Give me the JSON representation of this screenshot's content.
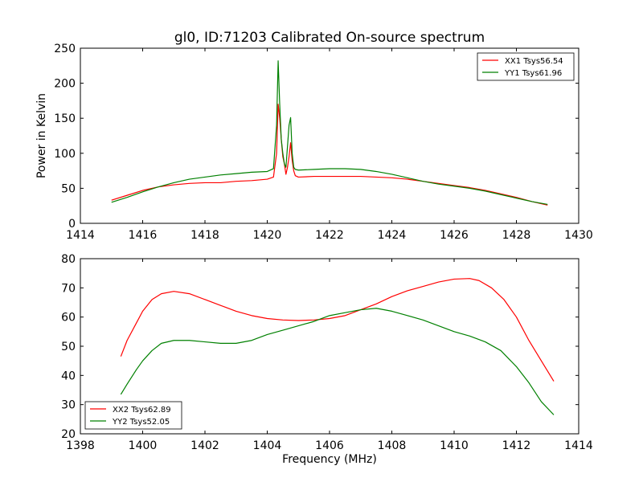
{
  "chart_data": [
    {
      "type": "line",
      "title": "gl0, ID:71203 Calibrated On-source spectrum",
      "xlabel": "",
      "ylabel": "Power in Kelvin",
      "xlim": [
        1414,
        1430
      ],
      "ylim": [
        0,
        250
      ],
      "xticks": [
        1414,
        1416,
        1418,
        1420,
        1422,
        1424,
        1426,
        1428,
        1430
      ],
      "yticks": [
        0,
        50,
        100,
        150,
        200,
        250
      ],
      "grid": false,
      "legend": "top-right",
      "series": [
        {
          "name": "XX1 Tsys56.54",
          "color": "#ff0000",
          "x": [
            1415.0,
            1415.5,
            1416.0,
            1416.5,
            1417.0,
            1417.5,
            1418.0,
            1418.5,
            1419.0,
            1419.5,
            1420.0,
            1420.2,
            1420.3,
            1420.35,
            1420.4,
            1420.45,
            1420.5,
            1420.55,
            1420.6,
            1420.65,
            1420.7,
            1420.75,
            1420.8,
            1420.85,
            1420.9,
            1421.0,
            1421.5,
            1422.0,
            1422.5,
            1423.0,
            1423.5,
            1424.0,
            1424.5,
            1425.0,
            1425.5,
            1426.0,
            1426.5,
            1427.0,
            1427.5,
            1428.0,
            1428.5,
            1429.0
          ],
          "y": [
            33,
            40,
            47,
            52,
            55,
            57,
            58,
            58,
            60,
            61,
            63,
            66,
            100,
            170,
            150,
            120,
            95,
            85,
            70,
            80,
            95,
            115,
            90,
            75,
            68,
            66,
            67,
            67,
            67,
            67,
            66,
            65,
            63,
            60,
            57,
            54,
            51,
            47,
            42,
            37,
            31,
            26
          ]
        },
        {
          "name": "YY1 Tsys61.96",
          "color": "#008000",
          "x": [
            1415.0,
            1415.5,
            1416.0,
            1416.5,
            1417.0,
            1417.5,
            1418.0,
            1418.5,
            1419.0,
            1419.5,
            1420.0,
            1420.2,
            1420.3,
            1420.35,
            1420.4,
            1420.45,
            1420.5,
            1420.55,
            1420.6,
            1420.65,
            1420.7,
            1420.75,
            1420.8,
            1420.85,
            1420.9,
            1421.0,
            1421.5,
            1422.0,
            1422.5,
            1423.0,
            1423.5,
            1424.0,
            1424.5,
            1425.0,
            1425.5,
            1426.0,
            1426.5,
            1427.0,
            1427.5,
            1428.0,
            1428.5,
            1429.0
          ],
          "y": [
            30,
            37,
            45,
            52,
            58,
            63,
            66,
            69,
            71,
            73,
            74,
            78,
            140,
            232,
            170,
            120,
            100,
            85,
            80,
            110,
            140,
            151,
            100,
            80,
            77,
            76,
            77,
            78,
            78,
            77,
            74,
            70,
            65,
            60,
            56,
            53,
            50,
            46,
            41,
            36,
            31,
            27
          ]
        }
      ]
    },
    {
      "type": "line",
      "title": "",
      "xlabel": "Frequency (MHz)",
      "ylabel": "",
      "xlim": [
        1398,
        1414
      ],
      "ylim": [
        20,
        80
      ],
      "xticks": [
        1398,
        1400,
        1402,
        1404,
        1406,
        1408,
        1410,
        1412,
        1414
      ],
      "yticks": [
        20,
        30,
        40,
        50,
        60,
        70,
        80
      ],
      "grid": false,
      "legend": "bottom-left",
      "series": [
        {
          "name": "XX2 Tsys62.89",
          "color": "#ff0000",
          "x": [
            1399.3,
            1399.5,
            1399.8,
            1400.0,
            1400.3,
            1400.6,
            1401.0,
            1401.5,
            1402.0,
            1402.5,
            1403.0,
            1403.5,
            1404.0,
            1404.5,
            1405.0,
            1405.5,
            1406.0,
            1406.5,
            1407.0,
            1407.5,
            1408.0,
            1408.5,
            1409.0,
            1409.5,
            1410.0,
            1410.5,
            1410.8,
            1411.2,
            1411.6,
            1412.0,
            1412.4,
            1412.8,
            1413.2
          ],
          "y": [
            46.5,
            52,
            58,
            62,
            66,
            68,
            68.8,
            68,
            66,
            64,
            62,
            60.5,
            59.5,
            59,
            58.8,
            59,
            59.5,
            60.5,
            62.5,
            64.5,
            67,
            69,
            70.5,
            72,
            73,
            73.2,
            72.5,
            70,
            66,
            60,
            52,
            45,
            38
          ]
        },
        {
          "name": "YY2 Tsys52.05",
          "color": "#008000",
          "x": [
            1399.3,
            1399.5,
            1399.8,
            1400.0,
            1400.3,
            1400.6,
            1401.0,
            1401.5,
            1402.0,
            1402.5,
            1403.0,
            1403.5,
            1404.0,
            1404.5,
            1405.0,
            1405.5,
            1406.0,
            1406.5,
            1407.0,
            1407.5,
            1408.0,
            1408.5,
            1409.0,
            1409.5,
            1410.0,
            1410.5,
            1411.0,
            1411.5,
            1412.0,
            1412.4,
            1412.8,
            1413.2
          ],
          "y": [
            33.5,
            37,
            42,
            45,
            48.5,
            51,
            52,
            52,
            51.5,
            51,
            51,
            52,
            54,
            55.5,
            57,
            58.5,
            60.5,
            61.5,
            62.5,
            63,
            62,
            60.5,
            59,
            57,
            55,
            53.5,
            51.5,
            48.5,
            43,
            37.5,
            31,
            26.5
          ]
        }
      ]
    }
  ]
}
